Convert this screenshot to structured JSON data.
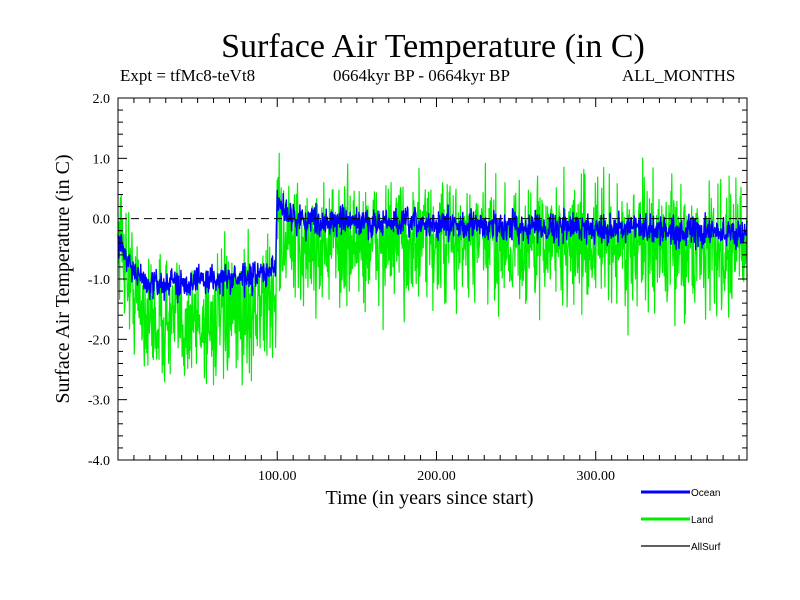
{
  "chart_data": {
    "type": "line",
    "title": "Surface Air Temperature (in C)",
    "experiment": "Expt = tfMc8-teVt8",
    "period": "0664kyr BP - 0664kyr BP",
    "months": "ALL_MONTHS",
    "xlabel": "Time (in years since start)",
    "ylabel": "Surface Air Temperature (in C)",
    "xlim": [
      0,
      395
    ],
    "ylim": [
      -4.0,
      2.0
    ],
    "x_ticks": [
      100,
      200,
      300
    ],
    "x_tick_labels": [
      "100.00",
      "200.00",
      "300.00"
    ],
    "y_ticks": [
      2.0,
      1.0,
      0.0,
      -1.0,
      -2.0,
      -3.0,
      -4.0
    ],
    "y_tick_labels": [
      "2.0",
      "1.0",
      "0.0",
      "-1.0",
      "-2.0",
      "-3.0",
      "-4.0"
    ],
    "reference_line": {
      "y": 0.0,
      "style": "dashed"
    },
    "grid": false,
    "legend_position": "bottom-right",
    "series": [
      {
        "name": "Ocean",
        "color": "#0000ff",
        "anchors": [
          [
            0,
            -0.3
          ],
          [
            5,
            -0.6
          ],
          [
            10,
            -0.9
          ],
          [
            20,
            -1.1
          ],
          [
            40,
            -1.05
          ],
          [
            60,
            -1.0
          ],
          [
            80,
            -1.0
          ],
          [
            99,
            -0.85
          ],
          [
            100,
            0.35
          ],
          [
            103,
            0.2
          ],
          [
            110,
            0.0
          ],
          [
            130,
            -0.05
          ],
          [
            200,
            -0.1
          ],
          [
            300,
            -0.15
          ],
          [
            395,
            -0.25
          ]
        ],
        "noise_amplitude": 0.28
      },
      {
        "name": "Land",
        "color": "#00ee00",
        "anchors": [
          [
            0,
            -0.2
          ],
          [
            5,
            -0.7
          ],
          [
            10,
            -1.2
          ],
          [
            20,
            -1.7
          ],
          [
            40,
            -1.7
          ],
          [
            60,
            -1.7
          ],
          [
            80,
            -1.55
          ],
          [
            99,
            -1.3
          ],
          [
            100,
            0.2
          ],
          [
            103,
            -0.3
          ],
          [
            110,
            -0.5
          ],
          [
            130,
            -0.4
          ],
          [
            200,
            -0.4
          ],
          [
            300,
            -0.4
          ],
          [
            395,
            -0.5
          ]
        ],
        "noise_amplitude": 1.2
      },
      {
        "name": "AllSurf",
        "color": "#000000",
        "anchors": [],
        "noise_amplitude": 0
      }
    ]
  }
}
